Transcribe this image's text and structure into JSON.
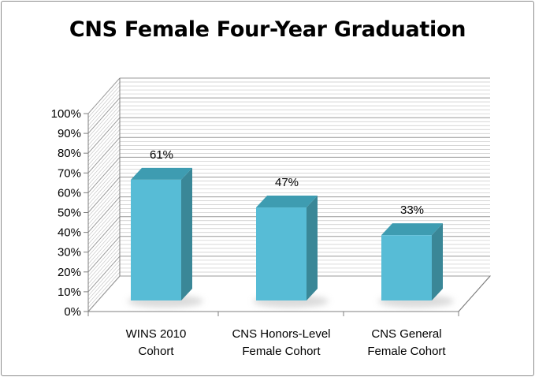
{
  "chart_data": {
    "type": "bar",
    "title": "CNS Female Four-Year Graduation",
    "xlabel": "",
    "ylabel": "",
    "categories": [
      [
        "WINS 2010",
        "Cohort"
      ],
      [
        "CNS Honors-Level",
        "Female Cohort"
      ],
      [
        "CNS General",
        "Female Cohort"
      ]
    ],
    "values": [
      61,
      47,
      33
    ],
    "data_labels": [
      "61%",
      "47%",
      "33%"
    ],
    "ylim": [
      0,
      100
    ],
    "y_ticks": [
      0,
      10,
      20,
      30,
      40,
      50,
      60,
      70,
      80,
      90,
      100
    ],
    "y_tick_labels": [
      "0%",
      "10%",
      "20%",
      "30%",
      "40%",
      "50%",
      "60%",
      "70%",
      "80%",
      "90%",
      "100%"
    ],
    "grid": true,
    "legend": "none",
    "style": "3d-column",
    "colors": {
      "bar_front": "#57bcd6",
      "bar_side": "#3a8797",
      "bar_top": "#3e9cb1",
      "shadow": "#e8e8e8",
      "gridline": "#9a9a9a",
      "axis": "#7f7f7f"
    }
  }
}
